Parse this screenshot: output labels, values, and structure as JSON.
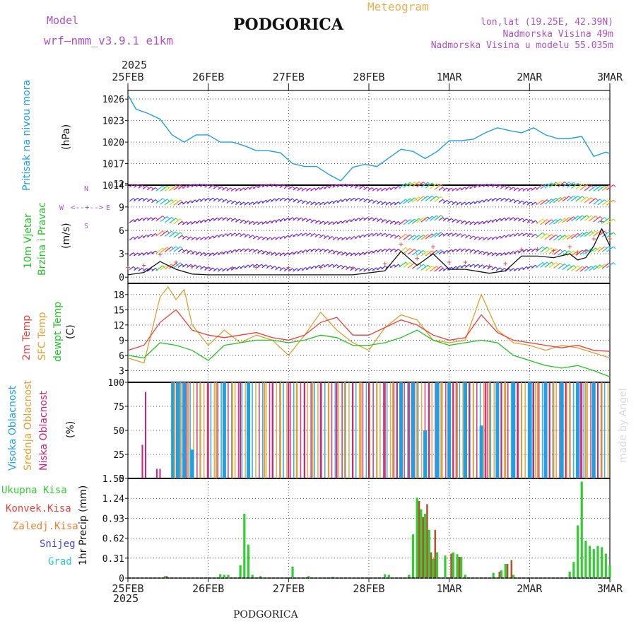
{
  "header": {
    "model_label": "Model",
    "model_name": "wrf–nmm_v3.9.1  e1km",
    "station": "PODGORICA",
    "meteogram_label": "Meteogram",
    "coords": "lon,lat (19.25E, 42.39N)",
    "elevation": "Nadmorska Visina 49m",
    "model_elevation": "Nadmorska Visina u modelu 55.035m",
    "year_top": "2025",
    "year_bottom": "2025",
    "footer_station": "PODGORICA",
    "credit": "made by Angel"
  },
  "colors": {
    "pressure": "#1ea0e6",
    "temp2m": "#e8403c",
    "sfc": "#e0a030",
    "dewpt": "#22c422",
    "high_cloud": "#1ea0e6",
    "mid_cloud": "#e0a030",
    "low_cloud": "#cc2277",
    "precip_total": "#33cc33",
    "precip_conv": "#e8403c",
    "precip_frozen": "#f08030",
    "snow": "#4444ee",
    "hail": "#22cccc"
  },
  "chart_data": [
    {
      "type": "line",
      "panel": "pressure",
      "ylabel_parts": [
        "Pritisak na nivou mora",
        "(hPa)"
      ],
      "x_ticks": [
        "25FEB",
        "26FEB",
        "27FEB",
        "28FEB",
        "1MAR",
        "2MAR",
        "3MAR"
      ],
      "yticks": [
        1014,
        1017,
        1020,
        1023,
        1026
      ],
      "ylim": [
        1014,
        1027.2
      ],
      "grid": true,
      "series": [
        {
          "x": [
            0,
            0.1,
            0.25,
            0.4,
            0.55,
            0.7,
            0.85,
            1.0,
            1.15,
            1.3,
            1.45,
            1.6,
            1.75,
            1.9,
            2.05,
            2.2,
            2.35,
            2.5,
            2.65,
            2.8,
            2.95,
            3.1,
            3.25,
            3.4,
            3.55,
            3.7,
            3.85,
            4.0,
            4.15,
            4.3,
            4.45,
            4.6,
            4.75,
            4.9,
            5.05,
            5.2,
            5.35,
            5.5,
            5.65,
            5.8,
            5.95,
            6.0
          ],
          "y": [
            1026.6,
            1024.6,
            1024.0,
            1023.2,
            1021.0,
            1020.0,
            1021.0,
            1021.0,
            1020.0,
            1020.0,
            1019.5,
            1018.8,
            1018.8,
            1018.5,
            1017.0,
            1016.6,
            1016.6,
            1015.5,
            1014.6,
            1016.5,
            1016.9,
            1016.6,
            1017.8,
            1019.0,
            1018.7,
            1017.7,
            1018.7,
            1020.2,
            1020.2,
            1020.4,
            1021.3,
            1022.0,
            1021.6,
            1021.3,
            1022.0,
            1021.0,
            1020.5,
            1020.5,
            1020.8,
            1018.0,
            1018.6,
            1018.4
          ]
        }
      ]
    },
    {
      "type": "line",
      "panel": "wind",
      "ylabel_parts": [
        "10m Vjetar",
        "Brzina i Pravac",
        "(m/s)"
      ],
      "compass": {
        "n": "N",
        "s": "S",
        "e": "E",
        "w": "W"
      },
      "yticks": [
        0,
        3,
        6,
        9,
        12
      ],
      "ylim": [
        -0.8,
        11.8
      ],
      "grid": true,
      "series": [
        {
          "name": "speed",
          "x": [
            0,
            0.2,
            0.4,
            0.6,
            0.8,
            1.0,
            1.3,
            1.6,
            2.0,
            2.4,
            2.8,
            3.2,
            3.4,
            3.6,
            3.8,
            4.0,
            4.2,
            4.5,
            4.7,
            4.9,
            5.1,
            5.3,
            5.5,
            5.6,
            5.7,
            5.8,
            5.9,
            6.0
          ],
          "y": [
            0.3,
            0.6,
            2.0,
            1.0,
            0.4,
            0.3,
            0.3,
            0.3,
            0.3,
            0.3,
            0.3,
            0.8,
            3.3,
            1.5,
            3.0,
            1.0,
            1.0,
            0.5,
            0.8,
            2.7,
            2.7,
            2.5,
            3.0,
            2.2,
            2.5,
            4.0,
            6.2,
            4.0
          ]
        }
      ]
    },
    {
      "type": "line",
      "panel": "temperature",
      "ylabel_parts": [
        "2m Temp",
        "SFC Temp",
        "dewpt Temp",
        "(C)"
      ],
      "yticks": [
        3,
        6,
        9,
        12,
        15,
        18
      ],
      "ylim": [
        0.7,
        20.2
      ],
      "grid": true,
      "series": [
        {
          "name": "2m Temp",
          "x": [
            0,
            0.2,
            0.4,
            0.6,
            0.8,
            1.0,
            1.2,
            1.4,
            1.6,
            1.8,
            2.0,
            2.2,
            2.4,
            2.6,
            2.8,
            3.0,
            3.2,
            3.4,
            3.6,
            3.8,
            4.0,
            4.2,
            4.4,
            4.6,
            4.8,
            5.0,
            5.2,
            5.4,
            5.6,
            5.8,
            6.0
          ],
          "y": [
            7,
            8,
            12.5,
            15,
            11,
            10,
            9.5,
            10,
            10.5,
            9.5,
            9,
            10,
            12.5,
            13.5,
            10,
            10,
            11.5,
            13,
            12,
            10,
            9,
            9.5,
            14,
            10.5,
            9,
            8.5,
            8,
            7.5,
            8,
            7,
            6.8
          ]
        },
        {
          "name": "SFC Temp",
          "x": [
            0,
            0.2,
            0.4,
            0.5,
            0.6,
            0.7,
            0.8,
            1.0,
            1.2,
            1.4,
            1.6,
            1.8,
            2.0,
            2.2,
            2.4,
            2.6,
            2.8,
            3.0,
            3.2,
            3.4,
            3.6,
            3.8,
            4.0,
            4.2,
            4.4,
            4.6,
            4.8,
            5.0,
            5.2,
            5.4,
            5.6,
            5.8,
            6.0
          ],
          "y": [
            5.5,
            4.5,
            17.5,
            19.5,
            17,
            19,
            12,
            8,
            11,
            8.5,
            10,
            9,
            6,
            10,
            14.5,
            11,
            8.5,
            7,
            11.5,
            14,
            13,
            9,
            8.5,
            9,
            18,
            11,
            8.5,
            8,
            7,
            8,
            7.5,
            6.5,
            5.5
          ]
        },
        {
          "name": "dewpt Temp",
          "x": [
            0,
            0.2,
            0.4,
            0.6,
            0.8,
            1.0,
            1.2,
            1.4,
            1.6,
            1.8,
            2.0,
            2.2,
            2.4,
            2.6,
            2.8,
            3.0,
            3.2,
            3.4,
            3.6,
            3.8,
            4.0,
            4.2,
            4.4,
            4.6,
            4.8,
            5.0,
            5.2,
            5.4,
            5.6,
            5.8,
            6.0
          ],
          "y": [
            6,
            5.5,
            8.5,
            8,
            7,
            5,
            8,
            8.5,
            9,
            9,
            8.5,
            9,
            10,
            9.5,
            8,
            8,
            8.5,
            9.5,
            11,
            9,
            8,
            8.5,
            9,
            8.5,
            6,
            5,
            4,
            3.5,
            4,
            3,
            1.8
          ]
        }
      ]
    },
    {
      "type": "bar",
      "panel": "clouds",
      "ylabel_parts": [
        "Visoka Oblacnost",
        "Srednja Oblacnost",
        "Niska Oblacnost",
        "(%)"
      ],
      "yticks": [
        0,
        25,
        50,
        75,
        100
      ],
      "ylim": [
        0,
        100
      ],
      "grid": true,
      "series": [
        {
          "name": "Visoka Oblacnost",
          "x": [
            0.56,
            0.62,
            0.7,
            0.8,
            1.2,
            1.5,
            3.4,
            3.55,
            3.7,
            3.85,
            4.0,
            4.2,
            4.4,
            4.6,
            4.8,
            5.0,
            5.2,
            5.4,
            5.6,
            5.8
          ],
          "y": [
            100,
            100,
            100,
            30,
            100,
            100,
            100,
            100,
            50,
            100,
            100,
            100,
            55,
            100,
            100,
            100,
            100,
            100,
            100,
            100
          ]
        },
        {
          "name": "Srednja Oblacnost",
          "x": [
            0.58,
            0.66,
            0.75,
            0.9,
            1.1,
            1.3,
            1.7,
            1.9,
            2.1,
            2.3,
            2.5,
            2.7,
            2.9,
            3.1,
            3.3,
            3.6,
            3.9,
            4.1,
            4.3,
            4.5,
            4.7,
            4.9,
            5.1,
            5.3,
            5.5,
            5.7,
            5.9
          ],
          "y": [
            100,
            100,
            100,
            100,
            100,
            100,
            100,
            100,
            100,
            100,
            100,
            100,
            100,
            100,
            100,
            100,
            100,
            100,
            100,
            100,
            100,
            100,
            100,
            100,
            100,
            100,
            100
          ]
        },
        {
          "name": "Niska Oblacnost",
          "x": [
            0.18,
            0.22,
            0.36,
            0.4,
            1.0,
            1.4,
            1.8,
            2.0,
            2.2,
            2.4,
            2.6,
            2.8,
            3.0,
            3.2,
            3.35,
            3.5,
            3.75,
            4.05,
            4.25,
            4.45,
            4.65,
            4.85,
            5.05,
            5.25,
            5.45,
            5.65,
            5.85
          ],
          "y": [
            35,
            90,
            10,
            10,
            100,
            100,
            100,
            100,
            100,
            100,
            100,
            100,
            100,
            100,
            100,
            100,
            100,
            100,
            100,
            100,
            100,
            100,
            100,
            100,
            100,
            100,
            100
          ]
        }
      ]
    },
    {
      "type": "bar",
      "panel": "precip",
      "ylabel_parts": [
        "1hr Precip (mm)"
      ],
      "legend": [
        "Ukupna Kisa",
        "Konvek.Kisa",
        "Zaledj.Kisa",
        "Snijeg",
        "Grad"
      ],
      "yticks": [
        0,
        0.31,
        0.62,
        0.93,
        1.24,
        1.55
      ],
      "ylim": [
        0,
        1.55
      ],
      "grid": true,
      "series": [
        {
          "name": "Ukupna Kisa",
          "x": [
            0.46,
            1.15,
            1.2,
            1.25,
            1.4,
            1.45,
            1.5,
            1.55,
            1.65,
            2.05,
            2.25,
            2.55,
            3.2,
            3.25,
            3.5,
            3.55,
            3.6,
            3.65,
            3.7,
            3.75,
            3.8,
            3.85,
            3.95,
            4.05,
            4.1,
            4.15,
            4.2,
            4.55,
            4.65,
            4.7,
            4.8,
            5.5,
            5.55,
            5.6,
            5.65,
            5.7,
            5.75,
            5.8,
            5.85,
            5.9,
            5.95,
            6.0
          ],
          "y": [
            0.03,
            0.06,
            0.05,
            0.05,
            0.2,
            1.0,
            0.52,
            0.05,
            0.03,
            0.18,
            0.03,
            0.02,
            0.06,
            0.05,
            0.05,
            0.68,
            1.25,
            1.07,
            1.0,
            0.75,
            0.3,
            0.4,
            0.35,
            0.4,
            0.37,
            0.33,
            0.05,
            0.08,
            0.12,
            0.22,
            0.05,
            0.1,
            0.25,
            0.82,
            1.5,
            0.58,
            0.5,
            0.45,
            0.5,
            0.48,
            0.38,
            0.2
          ]
        },
        {
          "name": "Konvek.Kisa",
          "x": [
            0.46,
            3.6,
            3.65,
            3.7,
            3.75,
            3.8,
            4.0,
            4.1,
            4.6,
            4.7,
            4.75
          ],
          "y": [
            0.03,
            1.2,
            0.95,
            1.15,
            0.4,
            0.75,
            0.38,
            0.33,
            0.1,
            0.22,
            0.28
          ]
        },
        {
          "name": "Zaledj.Kisa",
          "x": [],
          "y": []
        },
        {
          "name": "Snijeg",
          "x": [],
          "y": []
        },
        {
          "name": "Grad",
          "x": [],
          "y": []
        }
      ]
    }
  ]
}
